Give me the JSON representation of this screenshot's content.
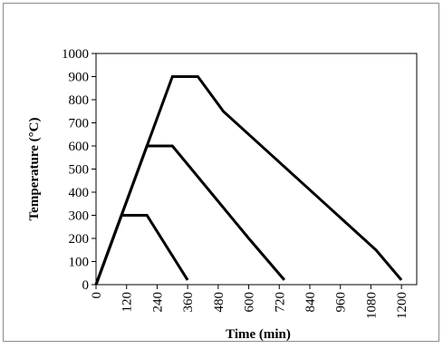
{
  "chart_data": {
    "type": "line",
    "title": "",
    "xlabel": "Time (min)",
    "ylabel": "Temperature (°C)",
    "xlim": [
      0,
      1260
    ],
    "ylim": [
      0,
      1000
    ],
    "x_ticks": [
      0,
      120,
      240,
      360,
      480,
      600,
      720,
      840,
      960,
      1080,
      1200
    ],
    "y_ticks": [
      0,
      100,
      200,
      300,
      400,
      500,
      600,
      700,
      800,
      900,
      1000
    ],
    "grid": false,
    "legend": "none",
    "series_color": "#000000",
    "series": [
      {
        "x": [
          0,
          100,
          200,
          360
        ],
        "y": [
          0,
          300,
          300,
          20
        ]
      },
      {
        "x": [
          0,
          200,
          300,
          600,
          740
        ],
        "y": [
          0,
          600,
          600,
          200,
          20
        ]
      },
      {
        "x": [
          0,
          300,
          400,
          500,
          700,
          900,
          1100,
          1200
        ],
        "y": [
          0,
          900,
          900,
          750,
          550,
          350,
          150,
          20
        ]
      }
    ]
  }
}
